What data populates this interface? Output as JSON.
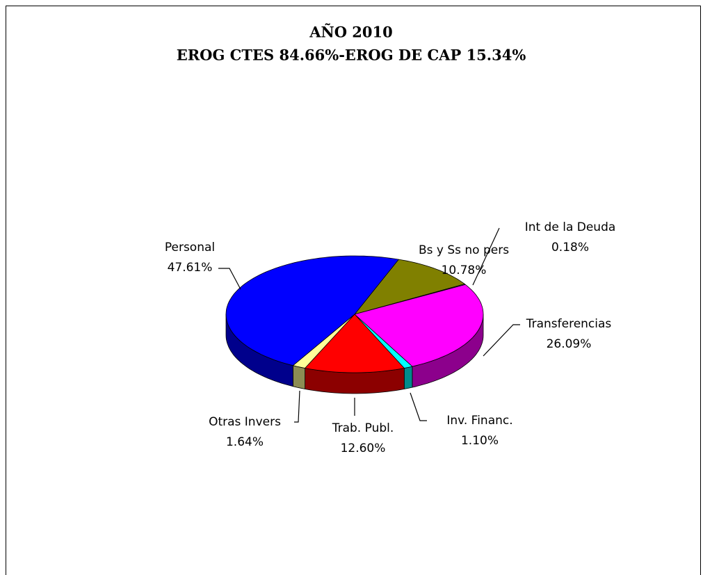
{
  "chart_data": {
    "type": "pie3d",
    "title": "AÑO 2010",
    "subtitle": "EROG CTES 84.66%-EROG DE CAP 15.34%",
    "categories": [
      "Bs y Ss no pers",
      "Int de la Deuda",
      "Transferencias",
      "Inv. Financ.",
      "Trab. Publ.",
      "Otras Invers",
      "Personal"
    ],
    "values": [
      10.78,
      0.18,
      26.09,
      1.1,
      12.6,
      1.64,
      47.61
    ],
    "value_labels": [
      "10.78%",
      "0.18%",
      "26.09%",
      "1.10%",
      "12.60%",
      "1.64%",
      "47.61%"
    ],
    "colors": [
      "#808000",
      "#9999ff",
      "#ff00ff",
      "#00ffff",
      "#ff0000",
      "#ffff99",
      "#0000ff"
    ]
  }
}
